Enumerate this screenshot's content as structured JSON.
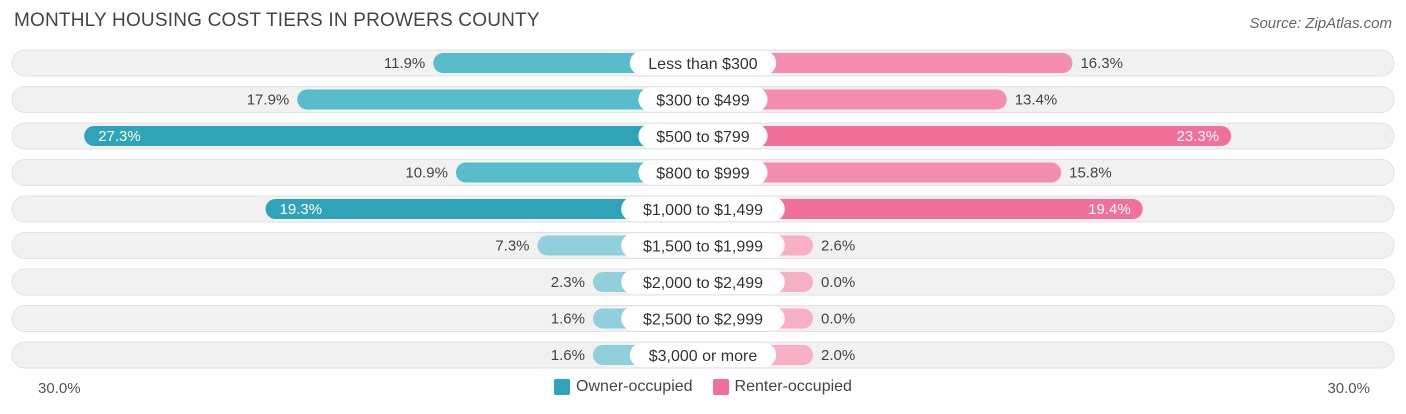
{
  "header": {
    "title": "MONTHLY HOUSING COST TIERS IN PROWERS COUNTY",
    "source": "Source: ZipAtlas.com"
  },
  "axis": {
    "left_label": "30.0%",
    "right_label": "30.0%"
  },
  "legend": {
    "owner_label": "Owner-occupied",
    "renter_label": "Renter-occupied"
  },
  "colors": {
    "owner_strong": "#2fa4b8",
    "owner_light": "#8fd0dc",
    "renter_strong": "#f0709a",
    "renter_light": "#f7afc6",
    "row_bg": "#f1f1f1"
  },
  "chart_data": {
    "type": "bar",
    "orientation": "horizontal-diverging",
    "title": "MONTHLY HOUSING COST TIERS IN PROWERS COUNTY",
    "xlim": [
      -30,
      30
    ],
    "categories": [
      "Less than $300",
      "$300 to $499",
      "$500 to $799",
      "$800 to $999",
      "$1,000 to $1,499",
      "$1,500 to $1,999",
      "$2,000 to $2,499",
      "$2,500 to $2,999",
      "$3,000 or more"
    ],
    "series": [
      {
        "name": "Owner-occupied",
        "values": [
          11.9,
          17.9,
          27.3,
          10.9,
          19.3,
          7.3,
          2.3,
          1.6,
          1.6
        ],
        "labels": [
          "11.9%",
          "17.9%",
          "27.3%",
          "10.9%",
          "19.3%",
          "7.3%",
          "2.3%",
          "1.6%",
          "1.6%"
        ]
      },
      {
        "name": "Renter-occupied",
        "values": [
          16.3,
          13.4,
          23.3,
          15.8,
          19.4,
          2.6,
          0.0,
          0.0,
          2.0
        ],
        "labels": [
          "16.3%",
          "13.4%",
          "23.3%",
          "15.8%",
          "19.4%",
          "2.6%",
          "0.0%",
          "0.0%",
          "2.0%"
        ]
      }
    ]
  }
}
